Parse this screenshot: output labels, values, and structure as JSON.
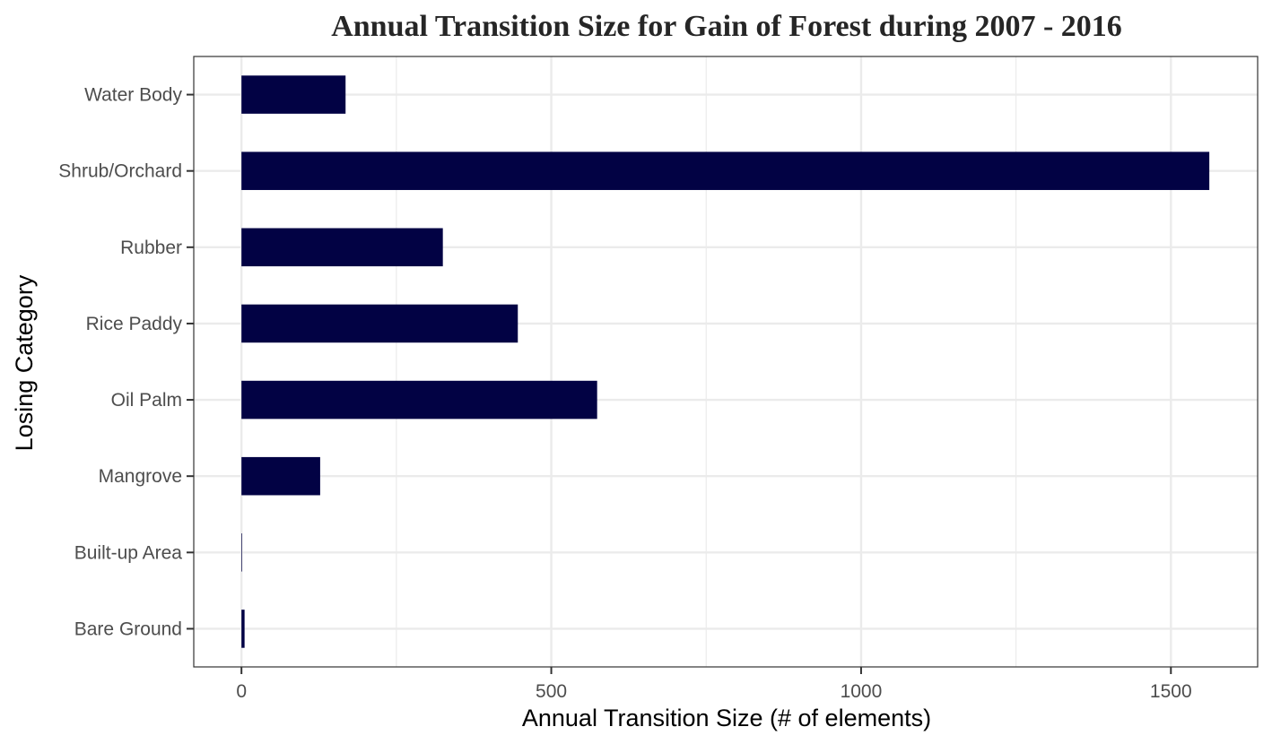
{
  "chart_data": {
    "type": "bar",
    "orientation": "horizontal",
    "title": "Annual Transition Size for Gain of  Forest during 2007 - 2016",
    "xlabel": "Annual Transition Size (# of elements)",
    "ylabel": "Losing Category",
    "categories": [
      "Water Body",
      "Shrub/Orchard",
      "Rubber",
      "Rice Paddy",
      "Oil Palm",
      "Mangrove",
      "Built-up Area",
      "Bare Ground"
    ],
    "values": [
      168,
      1562,
      325,
      446,
      574,
      127,
      1,
      5
    ],
    "xlim": [
      -77,
      1640
    ],
    "xticks": [
      0,
      500,
      1000,
      1500
    ],
    "xtick_labels": [
      "0",
      "500",
      "1000",
      "1500"
    ],
    "grid": true,
    "legend": "none",
    "bar_color": "#020244"
  }
}
